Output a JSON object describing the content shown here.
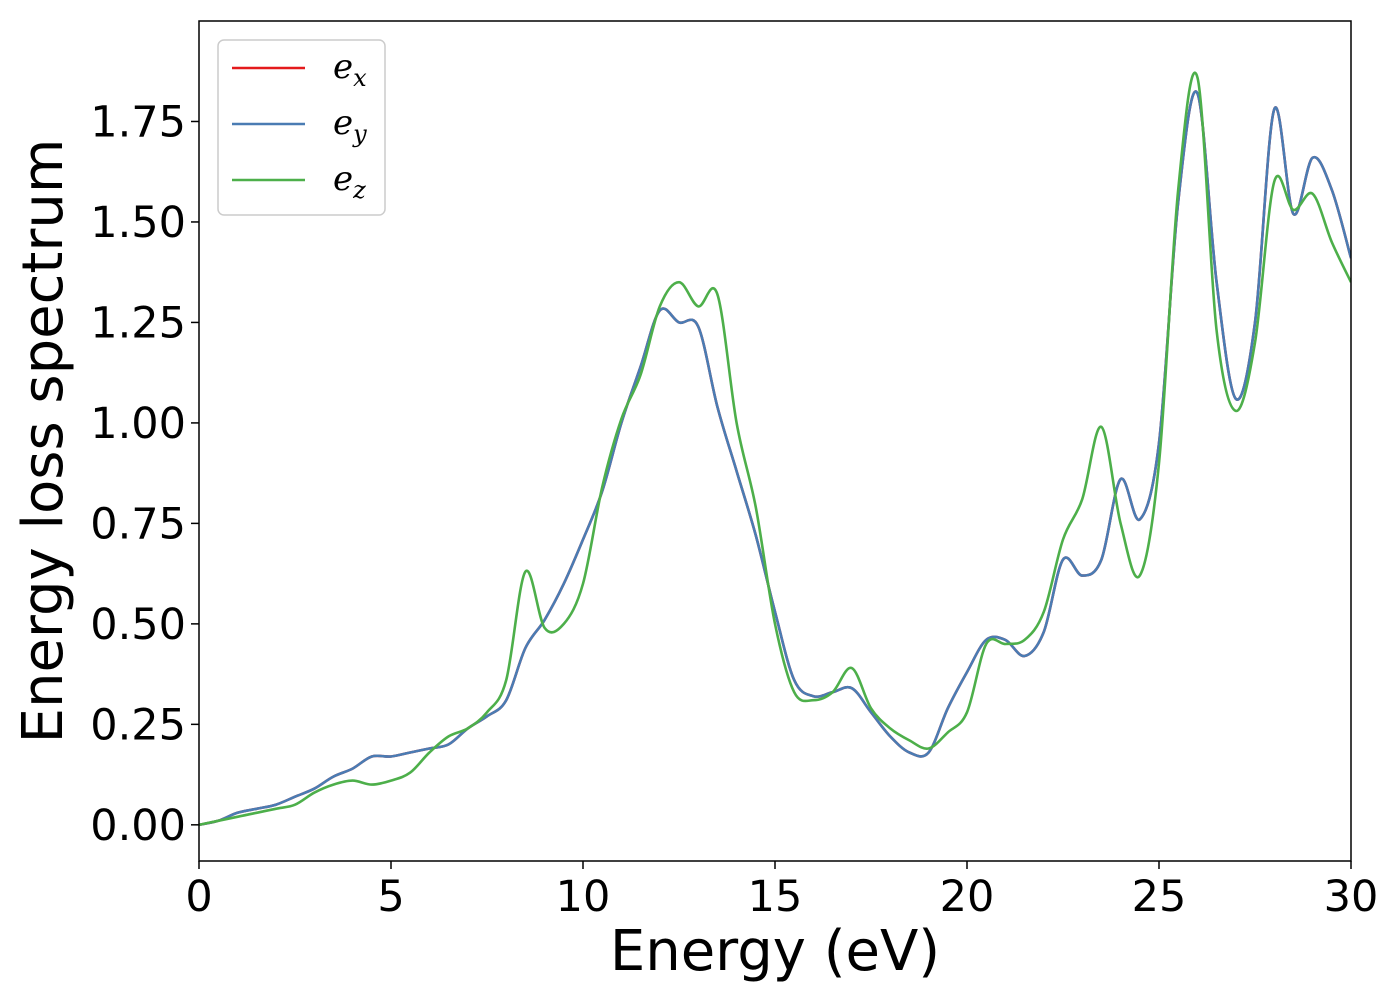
{
  "chart_data": {
    "type": "line",
    "title": "",
    "xlabel": "Energy (eV)",
    "ylabel": "Energy loss spectrum",
    "xlim": [
      0,
      30
    ],
    "ylim": [
      -0.09,
      2.0
    ],
    "xticks": [
      0,
      5,
      10,
      15,
      20,
      25,
      30
    ],
    "yticks": [
      0.0,
      0.25,
      0.5,
      0.75,
      1.0,
      1.25,
      1.5,
      1.75
    ],
    "ytick_labels": [
      "0.00",
      "0.25",
      "0.50",
      "0.75",
      "1.00",
      "1.25",
      "1.50",
      "1.75"
    ],
    "grid": false,
    "legend_position": "top-left",
    "series": [
      {
        "name": "e_x",
        "label_main": "e",
        "label_sub": "x",
        "color": "#e41a1c",
        "x": [
          0,
          0.5,
          1,
          1.5,
          2,
          2.5,
          3,
          3.5,
          4,
          4.5,
          5,
          5.5,
          6,
          6.5,
          7,
          7.5,
          8,
          8.5,
          9,
          9.5,
          10,
          10.5,
          11,
          11.5,
          12,
          12.5,
          13,
          13.5,
          14,
          14.5,
          15,
          15.5,
          16,
          16.5,
          17,
          17.5,
          18,
          18.5,
          19,
          19.5,
          20,
          20.5,
          21,
          21.5,
          22,
          22.5,
          23,
          23.5,
          24,
          24.5,
          25,
          25.5,
          26,
          26.5,
          27,
          27.5,
          28,
          28.5,
          29,
          29.5,
          30
        ],
        "y": [
          0.0,
          0.01,
          0.03,
          0.04,
          0.05,
          0.07,
          0.09,
          0.12,
          0.14,
          0.17,
          0.17,
          0.18,
          0.19,
          0.2,
          0.24,
          0.27,
          0.31,
          0.44,
          0.51,
          0.6,
          0.71,
          0.83,
          1.0,
          1.14,
          1.28,
          1.25,
          1.24,
          1.04,
          0.88,
          0.72,
          0.53,
          0.36,
          0.32,
          0.33,
          0.34,
          0.28,
          0.22,
          0.18,
          0.18,
          0.29,
          0.38,
          0.46,
          0.46,
          0.42,
          0.48,
          0.66,
          0.62,
          0.66,
          0.86,
          0.76,
          0.95,
          1.55,
          1.82,
          1.35,
          1.06,
          1.25,
          1.78,
          1.52,
          1.66,
          1.58,
          1.41
        ]
      },
      {
        "name": "e_y",
        "label_main": "e",
        "label_sub": "y",
        "color": "#4a7cb3",
        "x": [
          0,
          0.5,
          1,
          1.5,
          2,
          2.5,
          3,
          3.5,
          4,
          4.5,
          5,
          5.5,
          6,
          6.5,
          7,
          7.5,
          8,
          8.5,
          9,
          9.5,
          10,
          10.5,
          11,
          11.5,
          12,
          12.5,
          13,
          13.5,
          14,
          14.5,
          15,
          15.5,
          16,
          16.5,
          17,
          17.5,
          18,
          18.5,
          19,
          19.5,
          20,
          20.5,
          21,
          21.5,
          22,
          22.5,
          23,
          23.5,
          24,
          24.5,
          25,
          25.5,
          26,
          26.5,
          27,
          27.5,
          28,
          28.5,
          29,
          29.5,
          30
        ],
        "y": [
          0.0,
          0.01,
          0.03,
          0.04,
          0.05,
          0.07,
          0.09,
          0.12,
          0.14,
          0.17,
          0.17,
          0.18,
          0.19,
          0.2,
          0.24,
          0.27,
          0.31,
          0.44,
          0.51,
          0.6,
          0.71,
          0.83,
          1.0,
          1.14,
          1.28,
          1.25,
          1.24,
          1.04,
          0.88,
          0.72,
          0.53,
          0.36,
          0.32,
          0.33,
          0.34,
          0.28,
          0.22,
          0.18,
          0.18,
          0.29,
          0.38,
          0.46,
          0.46,
          0.42,
          0.48,
          0.66,
          0.62,
          0.66,
          0.86,
          0.76,
          0.95,
          1.55,
          1.82,
          1.35,
          1.06,
          1.25,
          1.78,
          1.52,
          1.66,
          1.58,
          1.41
        ]
      },
      {
        "name": "e_z",
        "label_main": "e",
        "label_sub": "z",
        "color": "#4daf4a",
        "x": [
          0,
          0.5,
          1,
          1.5,
          2,
          2.5,
          3,
          3.5,
          4,
          4.5,
          5,
          5.5,
          6,
          6.5,
          7,
          7.5,
          8,
          8.5,
          9,
          9.5,
          10,
          10.5,
          11,
          11.5,
          12,
          12.5,
          13,
          13.5,
          14,
          14.5,
          15,
          15.5,
          16,
          16.5,
          17,
          17.5,
          18,
          18.5,
          19,
          19.5,
          20,
          20.5,
          21,
          21.5,
          22,
          22.5,
          23,
          23.5,
          24,
          24.5,
          25,
          25.5,
          26,
          26.5,
          27,
          27.5,
          28,
          28.5,
          29,
          29.5,
          30
        ],
        "y": [
          0.0,
          0.01,
          0.02,
          0.03,
          0.04,
          0.05,
          0.08,
          0.1,
          0.11,
          0.1,
          0.11,
          0.13,
          0.18,
          0.22,
          0.24,
          0.28,
          0.36,
          0.63,
          0.49,
          0.5,
          0.6,
          0.84,
          1.01,
          1.12,
          1.29,
          1.35,
          1.29,
          1.32,
          1.0,
          0.79,
          0.5,
          0.33,
          0.31,
          0.33,
          0.39,
          0.29,
          0.24,
          0.21,
          0.19,
          0.23,
          0.28,
          0.45,
          0.45,
          0.46,
          0.53,
          0.71,
          0.81,
          0.99,
          0.75,
          0.62,
          0.9,
          1.58,
          1.86,
          1.23,
          1.03,
          1.2,
          1.6,
          1.53,
          1.57,
          1.45,
          1.35
        ]
      }
    ]
  }
}
